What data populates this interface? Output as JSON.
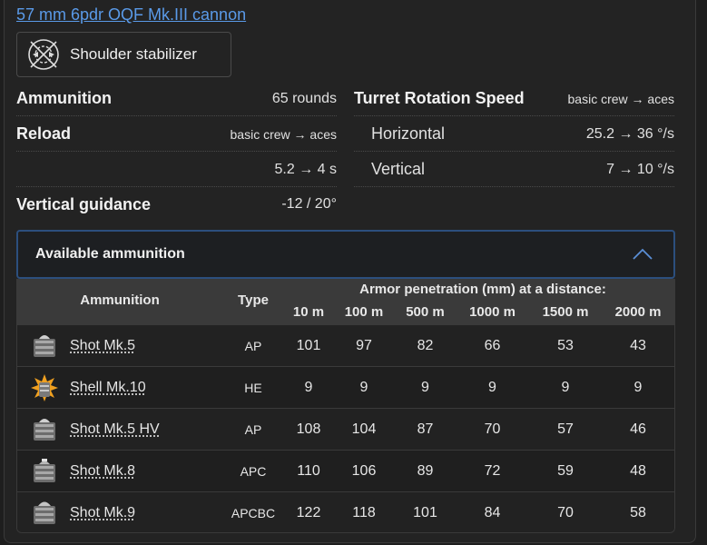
{
  "gun": {
    "title": "57 mm 6pdr OQF Mk.III cannon"
  },
  "modification": {
    "label": "Shoulder stabilizer",
    "icon": "stabilizer-icon"
  },
  "stats": {
    "ammunition": {
      "label": "Ammunition",
      "value": "65 rounds"
    },
    "reload": {
      "label": "Reload",
      "hint": "basic crew → aces",
      "value": "5.2 → 4 s"
    },
    "vertical_guidance": {
      "label": "Vertical guidance",
      "value": "-12 / 20°"
    },
    "turret_rotation": {
      "label": "Turret Rotation Speed",
      "hint": "basic crew → aces",
      "horizontal": {
        "label": "Horizontal",
        "value": "25.2 → 36 °/s"
      },
      "vertical": {
        "label": "Vertical",
        "value": "7 → 10 °/s"
      }
    }
  },
  "ammo_section": {
    "title": "Available ammunition",
    "expanded": true,
    "columns": {
      "ammunition": "Ammunition",
      "type": "Type",
      "penetration_group": "Armor penetration (mm) at a distance:",
      "distances": [
        "10 m",
        "100 m",
        "500 m",
        "1000 m",
        "1500 m",
        "2000 m"
      ]
    },
    "rows": [
      {
        "name": "Shot Mk.5",
        "type": "AP",
        "pen": [
          "101",
          "97",
          "82",
          "66",
          "53",
          "43"
        ],
        "icon": "ap-shot-icon"
      },
      {
        "name": "Shell Mk.10",
        "type": "HE",
        "pen": [
          "9",
          "9",
          "9",
          "9",
          "9",
          "9"
        ],
        "icon": "he-shell-icon"
      },
      {
        "name": "Shot Mk.5 HV",
        "type": "AP",
        "pen": [
          "108",
          "104",
          "87",
          "70",
          "57",
          "46"
        ],
        "icon": "ap-shot-icon"
      },
      {
        "name": "Shot Mk.8",
        "type": "APC",
        "pen": [
          "110",
          "106",
          "89",
          "72",
          "59",
          "48"
        ],
        "icon": "apc-shot-icon"
      },
      {
        "name": "Shot Mk.9",
        "type": "APCBC",
        "pen": [
          "122",
          "118",
          "101",
          "84",
          "70",
          "58"
        ],
        "icon": "apcbc-shot-icon"
      }
    ]
  },
  "colors": {
    "link": "#5a9ae8",
    "accent_border": "#2c4f7e",
    "background": "#232323"
  }
}
